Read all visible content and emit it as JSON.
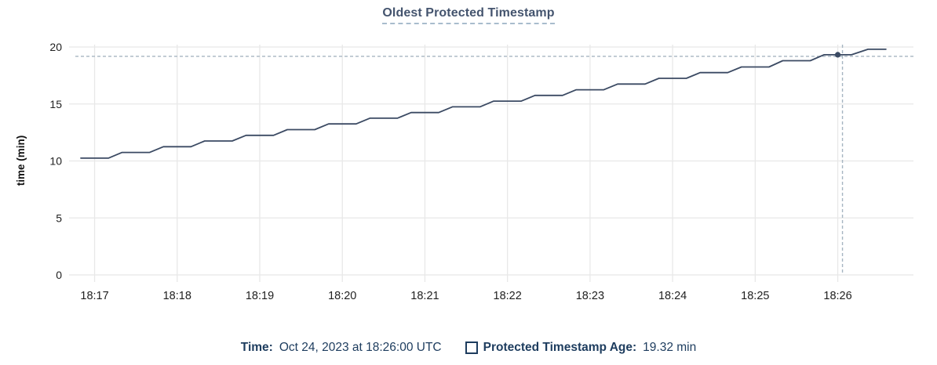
{
  "title": "Oldest Protected Timestamp",
  "footer": {
    "time_label": "Time:",
    "time_value": "Oct 24, 2023 at 18:26:00 UTC",
    "series_label": "Protected Timestamp Age:",
    "series_value": "19.32 min"
  },
  "colors": {
    "title_text": "#44546e",
    "footer_text": "#1d3c5e",
    "line": "#3b4a63",
    "marker": "#3b4a63",
    "crosshair": "#a6b5c1",
    "grid": "#e8e8e8",
    "tick_text": "#1f1f1f",
    "axis_title_text": "#111111"
  },
  "chart_data": {
    "type": "line",
    "title": "Oldest Protected Timestamp",
    "xlabel": "",
    "ylabel": "time (min)",
    "ylim": [
      0,
      20
    ],
    "yticks": [
      0,
      5,
      10,
      15,
      20
    ],
    "xticks": [
      "18:17",
      "18:18",
      "18:19",
      "18:20",
      "18:21",
      "18:22",
      "18:23",
      "18:24",
      "18:25",
      "18:26"
    ],
    "x_domain": [
      "18:16:46",
      "18:26:55"
    ],
    "grid": true,
    "legend_position": "bottom",
    "series": [
      {
        "name": "Protected Timestamp Age",
        "unit": "min",
        "points": [
          [
            "18:16:50",
            10.25
          ],
          [
            "18:17:10",
            10.25
          ],
          [
            "18:17:20",
            10.75
          ],
          [
            "18:17:40",
            10.75
          ],
          [
            "18:17:50",
            11.25
          ],
          [
            "18:18:10",
            11.25
          ],
          [
            "18:18:20",
            11.75
          ],
          [
            "18:18:40",
            11.75
          ],
          [
            "18:18:50",
            12.25
          ],
          [
            "18:19:10",
            12.25
          ],
          [
            "18:19:20",
            12.75
          ],
          [
            "18:19:40",
            12.75
          ],
          [
            "18:19:50",
            13.25
          ],
          [
            "18:20:10",
            13.25
          ],
          [
            "18:20:20",
            13.75
          ],
          [
            "18:20:40",
            13.75
          ],
          [
            "18:20:50",
            14.25
          ],
          [
            "18:21:10",
            14.25
          ],
          [
            "18:21:20",
            14.75
          ],
          [
            "18:21:40",
            14.75
          ],
          [
            "18:21:50",
            15.25
          ],
          [
            "18:22:10",
            15.25
          ],
          [
            "18:22:20",
            15.75
          ],
          [
            "18:22:40",
            15.75
          ],
          [
            "18:22:50",
            16.25
          ],
          [
            "18:23:10",
            16.25
          ],
          [
            "18:23:20",
            16.75
          ],
          [
            "18:23:40",
            16.75
          ],
          [
            "18:23:50",
            17.25
          ],
          [
            "18:24:10",
            17.25
          ],
          [
            "18:24:20",
            17.75
          ],
          [
            "18:24:40",
            17.75
          ],
          [
            "18:24:50",
            18.25
          ],
          [
            "18:25:10",
            18.25
          ],
          [
            "18:25:20",
            18.8
          ],
          [
            "18:25:40",
            18.8
          ],
          [
            "18:25:50",
            19.32
          ],
          [
            "18:26:10",
            19.32
          ],
          [
            "18:26:22",
            19.8
          ],
          [
            "18:26:35",
            19.8
          ]
        ]
      }
    ],
    "hover": {
      "time": "18:26:00",
      "value": 19.32,
      "crosshair": true,
      "marker": true
    }
  }
}
